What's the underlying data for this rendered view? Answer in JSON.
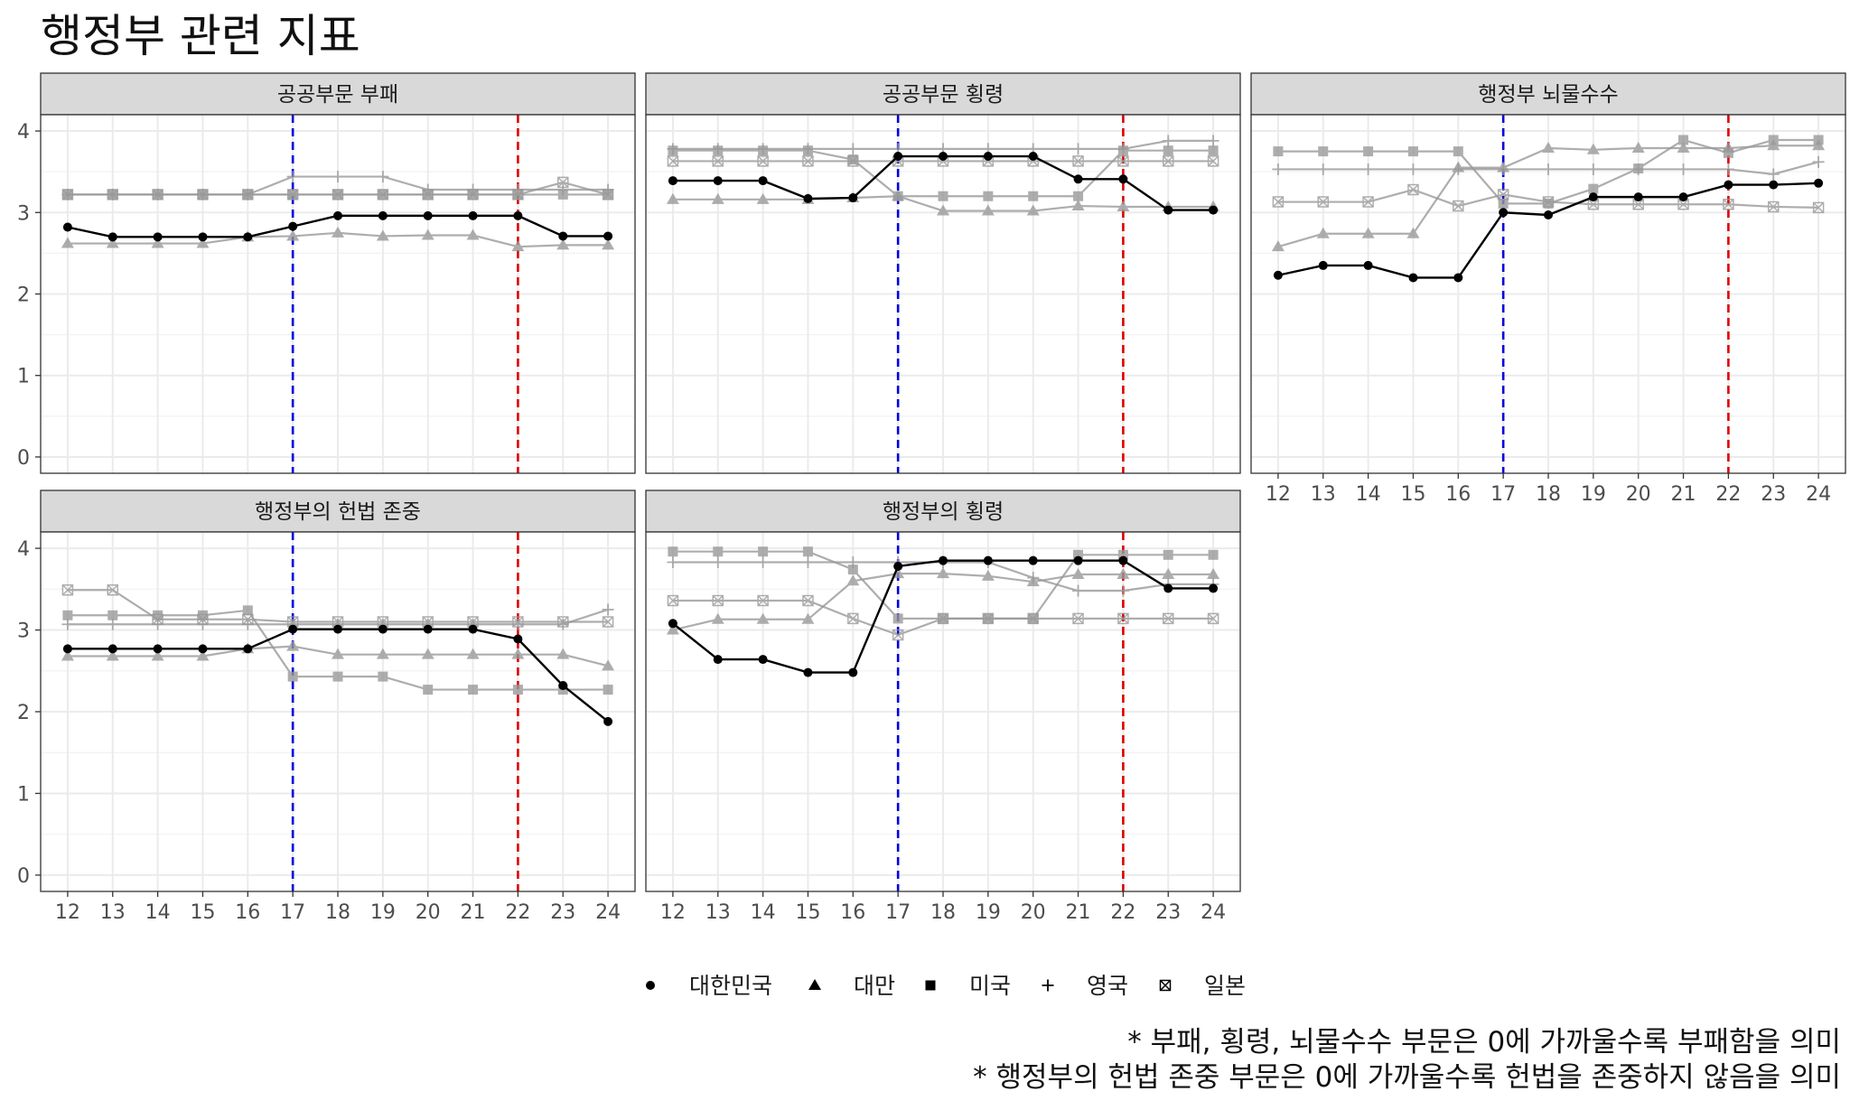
{
  "title": "행정부 관련 지표",
  "caption": [
    "* 부패, 횡령, 뇌물수수 부문은 0에 가까울수록 부패함을 의미",
    "* 행정부의 헌법 존중 부문은 0에 가까울수록 헌법을 존중하지 않음을 의미"
  ],
  "colors": {
    "korea": "#000000",
    "others": "#999999",
    "line_blue": "#0000dd",
    "line_red": "#dd0000",
    "strip": "#d9d9d9",
    "grid": "#ebebeb"
  },
  "chart_data": {
    "type": "line",
    "x": [
      12,
      13,
      14,
      15,
      16,
      17,
      18,
      19,
      20,
      21,
      22,
      23,
      24
    ],
    "xlim": [
      11.4,
      24.6
    ],
    "ylim": [
      -0.2,
      4.2
    ],
    "yticks": [
      0,
      1,
      2,
      3,
      4
    ],
    "vlines": [
      {
        "x": 17,
        "color": "blue"
      },
      {
        "x": 22,
        "color": "red"
      }
    ],
    "legend": [
      {
        "key": "korea",
        "label": "대한민국",
        "shape": "circle"
      },
      {
        "key": "taiwan",
        "label": "대만",
        "shape": "triangle"
      },
      {
        "key": "usa",
        "label": "미국",
        "shape": "square"
      },
      {
        "key": "uk",
        "label": "영국",
        "shape": "plus"
      },
      {
        "key": "japan",
        "label": "일본",
        "shape": "boxx"
      }
    ],
    "panels": [
      {
        "title": "공공부문 부패",
        "series": {
          "korea": [
            2.82,
            2.7,
            2.7,
            2.7,
            2.7,
            2.83,
            2.96,
            2.96,
            2.96,
            2.96,
            2.96,
            2.71,
            2.71
          ],
          "taiwan": [
            2.62,
            2.62,
            2.62,
            2.62,
            2.7,
            2.71,
            2.75,
            2.71,
            2.72,
            2.72,
            2.58,
            2.6,
            2.6
          ],
          "usa": [
            3.22,
            3.22,
            3.22,
            3.22,
            3.22,
            3.22,
            3.22,
            3.22,
            3.22,
            3.22,
            3.22,
            3.22,
            3.22
          ],
          "uk": [
            3.22,
            3.22,
            3.22,
            3.22,
            3.22,
            3.44,
            3.44,
            3.44,
            3.28,
            3.28,
            3.28,
            3.28,
            3.28
          ],
          "japan": [
            3.22,
            3.22,
            3.22,
            3.22,
            3.22,
            3.22,
            3.22,
            3.22,
            3.22,
            3.22,
            3.22,
            3.37,
            3.22
          ]
        }
      },
      {
        "title": "공공부문 횡령",
        "series": {
          "korea": [
            3.39,
            3.39,
            3.39,
            3.17,
            3.18,
            3.69,
            3.69,
            3.69,
            3.69,
            3.41,
            3.41,
            3.03,
            3.03
          ],
          "taiwan": [
            3.16,
            3.16,
            3.16,
            3.16,
            3.18,
            3.2,
            3.02,
            3.02,
            3.02,
            3.08,
            3.07,
            3.07,
            3.07
          ],
          "usa": [
            3.76,
            3.76,
            3.76,
            3.76,
            3.65,
            3.2,
            3.2,
            3.2,
            3.2,
            3.2,
            3.76,
            3.76,
            3.76
          ],
          "uk": [
            3.78,
            3.78,
            3.78,
            3.78,
            3.78,
            3.78,
            3.78,
            3.78,
            3.78,
            3.78,
            3.78,
            3.88,
            3.88
          ],
          "japan": [
            3.63,
            3.63,
            3.63,
            3.63,
            3.63,
            3.63,
            3.63,
            3.63,
            3.63,
            3.63,
            3.63,
            3.63,
            3.63
          ]
        }
      },
      {
        "title": "행정부 뇌물수수",
        "series": {
          "korea": [
            2.23,
            2.35,
            2.35,
            2.2,
            2.2,
            3.0,
            2.97,
            3.19,
            3.19,
            3.19,
            3.34,
            3.34,
            3.36
          ],
          "taiwan": [
            2.58,
            2.74,
            2.74,
            2.74,
            3.55,
            3.55,
            3.79,
            3.77,
            3.79,
            3.79,
            3.79,
            3.82,
            3.82
          ],
          "usa": [
            3.75,
            3.75,
            3.75,
            3.75,
            3.75,
            3.11,
            3.11,
            3.29,
            3.54,
            3.89,
            3.73,
            3.89,
            3.89
          ],
          "uk": [
            3.53,
            3.53,
            3.53,
            3.53,
            3.53,
            3.53,
            3.53,
            3.53,
            3.53,
            3.53,
            3.53,
            3.47,
            3.62
          ],
          "japan": [
            3.13,
            3.13,
            3.13,
            3.28,
            3.08,
            3.22,
            3.13,
            3.1,
            3.1,
            3.1,
            3.1,
            3.07,
            3.06
          ]
        }
      },
      {
        "title": "행정부의 헌법 존중",
        "series": {
          "korea": [
            2.77,
            2.77,
            2.77,
            2.77,
            2.77,
            3.01,
            3.01,
            3.01,
            3.01,
            3.01,
            2.89,
            2.32,
            1.88
          ],
          "taiwan": [
            2.68,
            2.68,
            2.68,
            2.68,
            2.77,
            2.8,
            2.7,
            2.7,
            2.7,
            2.7,
            2.7,
            2.7,
            2.56
          ],
          "usa": [
            3.18,
            3.18,
            3.18,
            3.18,
            3.24,
            2.43,
            2.43,
            2.43,
            2.27,
            2.27,
            2.27,
            2.27,
            2.27
          ],
          "uk": [
            3.07,
            3.07,
            3.07,
            3.07,
            3.07,
            3.07,
            3.07,
            3.07,
            3.07,
            3.07,
            3.07,
            3.07,
            3.25
          ],
          "japan": [
            3.49,
            3.49,
            3.13,
            3.13,
            3.13,
            3.1,
            3.1,
            3.1,
            3.1,
            3.1,
            3.1,
            3.1,
            3.1
          ]
        }
      },
      {
        "title": "행정부의 횡령",
        "series": {
          "korea": [
            3.08,
            2.64,
            2.64,
            2.48,
            2.48,
            3.78,
            3.85,
            3.85,
            3.85,
            3.85,
            3.85,
            3.51,
            3.51
          ],
          "taiwan": [
            3.0,
            3.13,
            3.13,
            3.13,
            3.6,
            3.69,
            3.69,
            3.66,
            3.59,
            3.68,
            3.68,
            3.68,
            3.68
          ],
          "usa": [
            3.96,
            3.96,
            3.96,
            3.96,
            3.74,
            3.14,
            3.14,
            3.14,
            3.14,
            3.92,
            3.92,
            3.92,
            3.92
          ],
          "uk": [
            3.83,
            3.83,
            3.83,
            3.83,
            3.83,
            3.83,
            3.83,
            3.83,
            3.64,
            3.48,
            3.48,
            3.56,
            3.56
          ],
          "japan": [
            3.36,
            3.36,
            3.36,
            3.36,
            3.14,
            2.94,
            3.14,
            3.14,
            3.14,
            3.14,
            3.14,
            3.14,
            3.14
          ]
        }
      }
    ]
  }
}
